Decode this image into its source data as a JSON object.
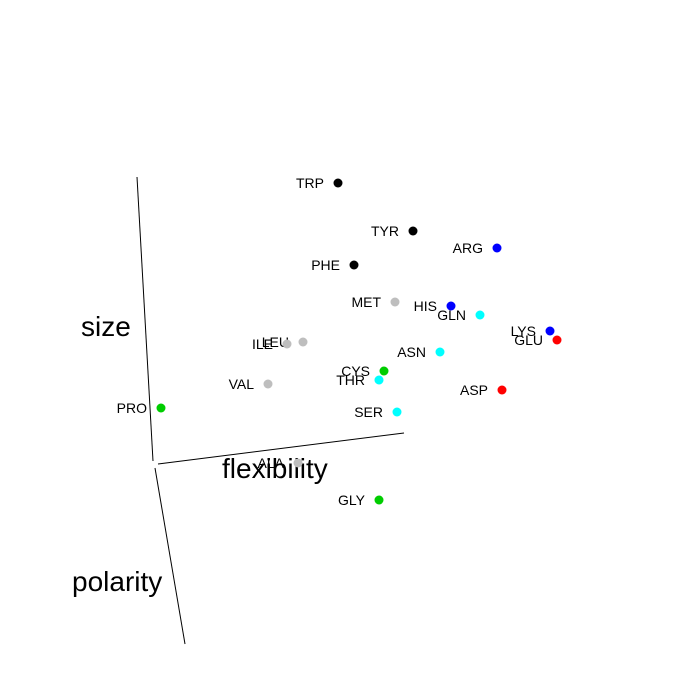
{
  "chart_data": {
    "type": "scatter",
    "title": "",
    "axis_labels": {
      "size": "size",
      "flexibility": "flexibility",
      "polarity": "polarity"
    },
    "grid": false,
    "legend": "none",
    "points": [
      {
        "label": "TRP",
        "color": "#000000"
      },
      {
        "label": "TYR",
        "color": "#000000"
      },
      {
        "label": "ARG",
        "color": "#0000ff"
      },
      {
        "label": "PHE",
        "color": "#000000"
      },
      {
        "label": "MET",
        "color": "#bebebe"
      },
      {
        "label": "HIS",
        "color": "#0000ff"
      },
      {
        "label": "GLN",
        "color": "#00ffff"
      },
      {
        "label": "LYS",
        "color": "#0000ff"
      },
      {
        "label": "GLU",
        "color": "#ff0000"
      },
      {
        "label": "LEU",
        "color": "#bebebe"
      },
      {
        "label": "ILE",
        "color": "#bebebe"
      },
      {
        "label": "ASN",
        "color": "#00ffff"
      },
      {
        "label": "CYS",
        "color": "#00cd00"
      },
      {
        "label": "THR",
        "color": "#00ffff"
      },
      {
        "label": "VAL",
        "color": "#bebebe"
      },
      {
        "label": "ASP",
        "color": "#ff0000"
      },
      {
        "label": "PRO",
        "color": "#00cd00"
      },
      {
        "label": "SER",
        "color": "#00ffff"
      },
      {
        "label": "ALA",
        "color": "#bebebe"
      },
      {
        "label": "GLY",
        "color": "#00cd00"
      }
    ]
  }
}
